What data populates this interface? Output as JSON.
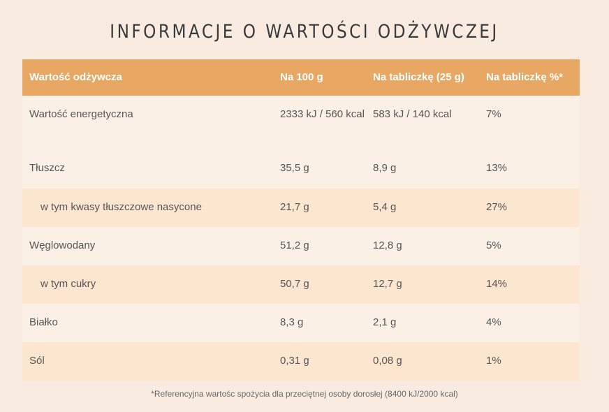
{
  "title": "INFORMACJE O WARTOŚCI ODŻYWCZEJ",
  "table": {
    "headers": [
      "Wartość odżywcza",
      "Na 100 g",
      "Na tabliczkę (25 g)",
      "Na tabliczkę %*"
    ],
    "rows": [
      [
        "Wartość energetyczna",
        "2333 kJ / 560 kcal",
        "583 kJ / 140 kcal",
        "7%"
      ],
      [
        "Tłuszcz",
        "35,5 g",
        "8,9 g",
        "13%"
      ],
      [
        "w tym kwasy tłuszczowe nasycone",
        "21,7 g",
        "5,4 g",
        "27%"
      ],
      [
        "Węglowodany",
        "51,2 g",
        "12,8 g",
        "5%"
      ],
      [
        "w tym cukry",
        "50,7 g",
        "12,7 g",
        "14%"
      ],
      [
        "Białko",
        "8,3 g",
        "2,1 g",
        "4%"
      ],
      [
        "Sól",
        "0,31 g",
        "0,08 g",
        "1%"
      ]
    ]
  },
  "footnote": "*Referencyjna wartośc spożycia dla przeciętnej osoby dorosłej (8400 kJ/2000 kcal)",
  "colors": {
    "background": "#f9ebe0",
    "header": "#e8a863",
    "row_light": "#fbf0e6",
    "row_dark": "#fde6cf"
  }
}
